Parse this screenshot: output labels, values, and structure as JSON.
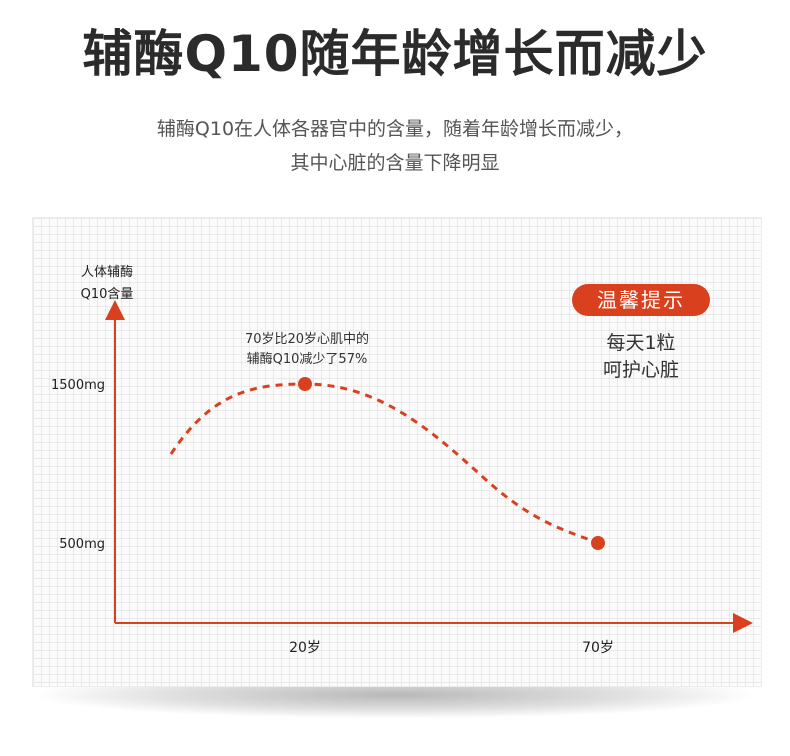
{
  "header": {
    "title": "辅酶Q10随年龄增长而减少",
    "subtitle_lines": [
      "辅酶Q10在人体各器官中的含量，随着年龄增长而减少，",
      "其中心脏的含量下降明显"
    ]
  },
  "reminder": {
    "badge": "温馨提示",
    "lines": [
      "每天1粒",
      "呵护心脏"
    ]
  },
  "colors": {
    "accent": "#d9411e",
    "axis": "#d9411e",
    "title": "#2b2b2b"
  },
  "chart_data": {
    "type": "line",
    "ylabel_lines": [
      "人体辅酶",
      "Q10含量"
    ],
    "y_ticks": [
      {
        "label": "1500mg",
        "value": 1500
      },
      {
        "label": "500mg",
        "value": 500
      }
    ],
    "x_ticks": [
      {
        "label": "20岁",
        "value": 20
      },
      {
        "label": "70岁",
        "value": 70
      }
    ],
    "series": [
      {
        "points": [
          {
            "x": 20,
            "y": 1500
          },
          {
            "x": 70,
            "y": 500
          }
        ]
      }
    ],
    "annotation": {
      "lines": [
        "70岁比20岁心肌中的",
        "辅酶Q10减少了57%"
      ],
      "x": 20,
      "y": 1500
    },
    "line_style": "dashed",
    "grid": true
  }
}
